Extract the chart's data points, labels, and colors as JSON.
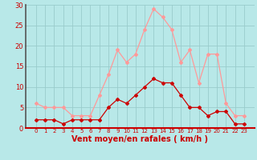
{
  "x": [
    0,
    1,
    2,
    3,
    4,
    5,
    6,
    7,
    8,
    9,
    10,
    11,
    12,
    13,
    14,
    15,
    16,
    17,
    18,
    19,
    20,
    21,
    22,
    23
  ],
  "vent_moyen": [
    2,
    2,
    2,
    1,
    2,
    2,
    2,
    2,
    5,
    7,
    6,
    8,
    10,
    12,
    11,
    11,
    8,
    5,
    5,
    3,
    4,
    4,
    1,
    1
  ],
  "rafales": [
    6,
    5,
    5,
    5,
    3,
    3,
    3,
    8,
    13,
    19,
    16,
    18,
    24,
    29,
    27,
    24,
    16,
    19,
    11,
    18,
    18,
    6,
    3,
    3
  ],
  "color_moyen": "#cc0000",
  "color_rafales": "#ff9999",
  "bg_color": "#b8e8e8",
  "grid_color": "#99cccc",
  "xlabel": "Vent moyen/en rafales ( km/h )",
  "xlabel_color": "#cc0000",
  "tick_color": "#cc0000",
  "left_spine_color": "#555555",
  "bottom_spine_color": "#cc0000",
  "ylim": [
    0,
    30
  ],
  "yticks": [
    0,
    5,
    10,
    15,
    20,
    25,
    30
  ],
  "xticks": [
    0,
    1,
    2,
    3,
    4,
    5,
    6,
    7,
    8,
    9,
    10,
    11,
    12,
    13,
    14,
    15,
    16,
    17,
    18,
    19,
    20,
    21,
    22,
    23
  ],
  "xlabel_fontsize": 7,
  "ytick_fontsize": 6,
  "xtick_fontsize": 5
}
